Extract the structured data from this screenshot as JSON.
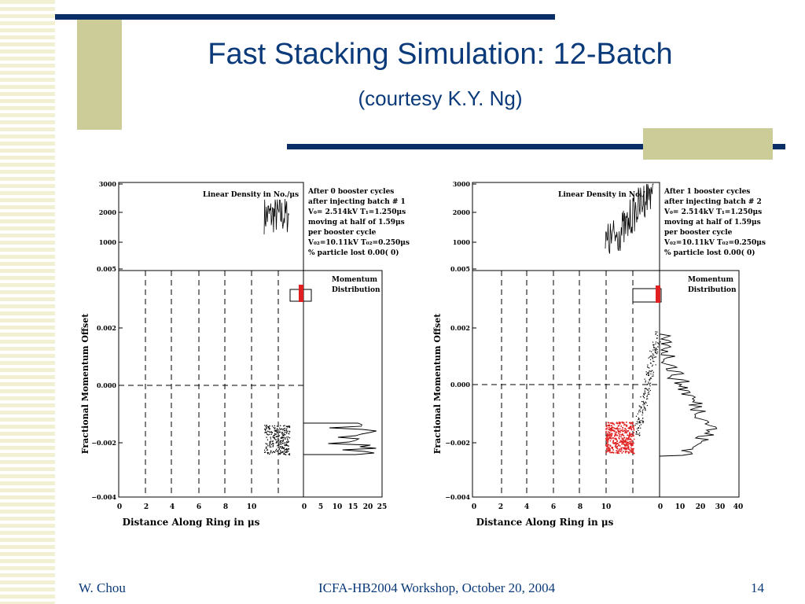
{
  "slide": {
    "title": "Fast Stacking Simulation: 12-Batch",
    "subtitle": "(courtesy K.Y. Ng)",
    "footer": {
      "left": "W. Chou",
      "center": "ICFA-HB2004 Workshop, October 20, 2004",
      "right": "14"
    }
  },
  "figures": [
    {
      "density_title": "Linear Density in No./μs",
      "density_yticks": [
        "3000",
        "2000",
        "1000",
        "0.005"
      ],
      "info_lines": [
        "After  0 booster cycles",
        "after injecting batch #  1",
        "V₀= 2.514kV T₁=1.250μs",
        "moving at half of 1.59μs",
        "per booster cycle",
        "V₀₂=10.11kV T₀₂=0.250μs",
        "% particle lost  0.00(    0)"
      ],
      "momentum_label": [
        "Momentum",
        "Distribution"
      ],
      "ylabel": "Fractional Momentum Offset",
      "yticks": [
        "0.002",
        "0.000",
        "−0.002",
        "−0.004"
      ],
      "xticks": [
        "0",
        "2",
        "4",
        "6",
        "8",
        "10"
      ],
      "xlabel": "Distance Along Ring in μs",
      "hist_xticks": [
        "0",
        "5",
        "10",
        "15",
        "20",
        "25"
      ]
    },
    {
      "density_title": "Linear Density in No./",
      "density_yticks": [
        "3000",
        "2000",
        "1000",
        "0.005"
      ],
      "info_lines": [
        "After  1 booster cycles",
        "after injecting batch #  2",
        "V₀= 2.514kV T₁=1.250μs",
        "moving at half of 1.59μs",
        "per booster cycle",
        "V₀₂=10.11kV T₀₂=0.250μs",
        "% particle lost  0.00(    0)"
      ],
      "momentum_label": [
        "Momentum",
        "Distribution"
      ],
      "ylabel": "Fractional Momentum Offset",
      "yticks": [
        "0.002",
        "0.000",
        "−0.002",
        "−0.004"
      ],
      "xticks": [
        "0",
        "2",
        "4",
        "6",
        "8",
        "10"
      ],
      "xlabel": "Distance Along Ring in μs",
      "hist_xticks": [
        "0",
        "10",
        "20",
        "30",
        "40"
      ]
    }
  ]
}
